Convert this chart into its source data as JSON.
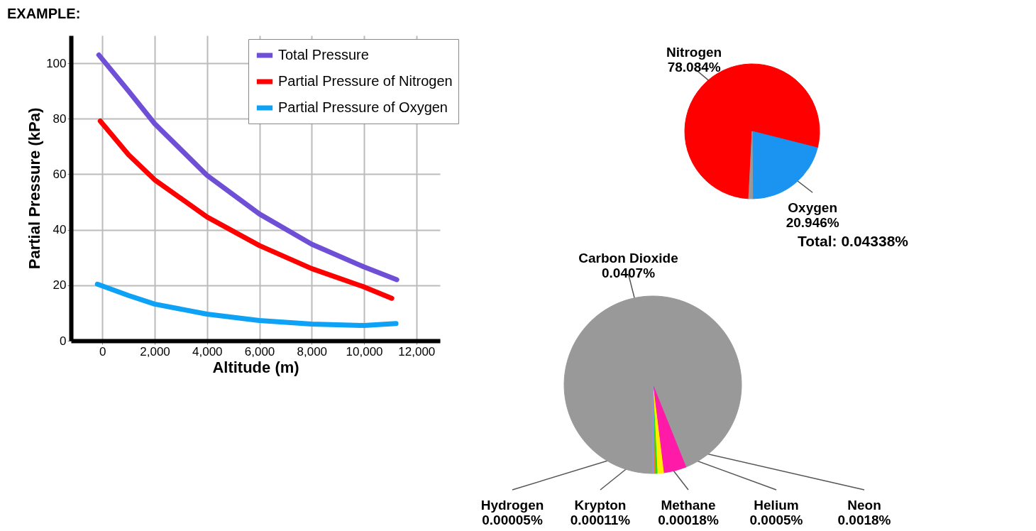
{
  "chart_data": [
    {
      "type": "line",
      "annotations": [
        "EXAMPLE:"
      ],
      "xlabel": "Altitude (m)",
      "ylabel": "Partial Pressure (kPa)",
      "xlim": [
        -1200,
        12900
      ],
      "ylim": [
        0,
        110
      ],
      "xticks": [
        0,
        {
          "value": 2000,
          "label": "2,000"
        },
        {
          "value": 4000,
          "label": "4,000"
        },
        {
          "value": 6000,
          "label": "6,000"
        },
        {
          "value": 8000,
          "label": "8,000"
        },
        {
          "value": 10000,
          "label": "10,000"
        },
        {
          "value": 12000,
          "label": "12,000"
        }
      ],
      "yticks": [
        0,
        20,
        40,
        60,
        80,
        100
      ],
      "grid": true,
      "legend": "top right",
      "series": [
        {
          "name": "Total Pressure",
          "color": "#6f4fd6",
          "x": [
            -135,
            1000,
            2000,
            4000,
            6000,
            8000,
            10000,
            11250
          ],
          "values": [
            103,
            90,
            78.2,
            59.6,
            45.7,
            34.8,
            26.6,
            22
          ]
        },
        {
          "name": "Partial Pressure of Nitrogen",
          "color": "#ff0000",
          "x": [
            -80,
            1000,
            2000,
            4000,
            6000,
            8000,
            10000,
            11060
          ],
          "values": [
            79.2,
            67,
            58,
            44.6,
            34.3,
            26,
            19.4,
            15.3
          ]
        },
        {
          "name": "Partial Pressure of Oxygen",
          "color": "#0da2f5",
          "x": [
            -190,
            1000,
            2000,
            4000,
            6000,
            8000,
            10000,
            11220
          ],
          "values": [
            20.4,
            16.3,
            13.2,
            9.6,
            7.3,
            6,
            5.5,
            6.2
          ]
        }
      ]
    },
    {
      "type": "pie",
      "categories": [
        "Nitrogen",
        "Oxygen",
        null
      ],
      "values": [
        78.084,
        20.946,
        0.97
      ],
      "colors": [
        "#ff0000",
        "#1a94f0",
        "#999999"
      ],
      "value_labels": [
        "78.084%",
        "20.946%",
        null
      ]
    },
    {
      "type": "pie",
      "title": "Total: 0.04338%",
      "categories": [
        "Carbon Dioxide",
        "Neon",
        "Helium",
        "Methane",
        "Krypton",
        "Hydrogen"
      ],
      "values": [
        0.0407,
        0.0018,
        0.0005,
        0.00018,
        0.00011,
        5e-05
      ],
      "colors": [
        "#999999",
        "#ff1aa8",
        "#ffee00",
        "#22dd22",
        "#ff7a1a",
        "#8899ee"
      ],
      "value_labels": [
        "0.0407%",
        "0.0018%",
        "0.0005%",
        "0.00018%",
        "0.00011%",
        "0.00005%"
      ]
    }
  ]
}
